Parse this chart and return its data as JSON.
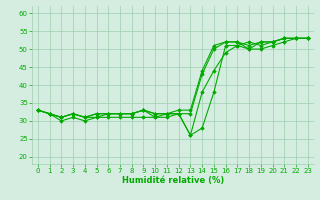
{
  "xlabel": "Humidité relative (%)",
  "xlim": [
    -0.5,
    23.5
  ],
  "ylim": [
    18,
    62
  ],
  "yticks": [
    20,
    25,
    30,
    35,
    40,
    45,
    50,
    55,
    60
  ],
  "xticks": [
    0,
    1,
    2,
    3,
    4,
    5,
    6,
    7,
    8,
    9,
    10,
    11,
    12,
    13,
    14,
    15,
    16,
    17,
    18,
    19,
    20,
    21,
    22,
    23
  ],
  "background_color": "#d5ede0",
  "grid_color": "#9ecfb0",
  "line_color": "#00aa00",
  "lines": [
    [
      33,
      32,
      31,
      32,
      31,
      31,
      32,
      32,
      32,
      33,
      31,
      32,
      32,
      26,
      28,
      38,
      51,
      51,
      52,
      51,
      52,
      53,
      53,
      53
    ],
    [
      33,
      32,
      30,
      31,
      30,
      31,
      31,
      31,
      31,
      31,
      31,
      31,
      32,
      26,
      38,
      44,
      49,
      51,
      50,
      50,
      51,
      52,
      53,
      53
    ],
    [
      33,
      32,
      31,
      32,
      31,
      32,
      32,
      32,
      32,
      33,
      32,
      32,
      32,
      32,
      43,
      50,
      52,
      52,
      50,
      52,
      52,
      53,
      53,
      53
    ],
    [
      33,
      32,
      31,
      32,
      31,
      32,
      32,
      32,
      32,
      33,
      32,
      32,
      33,
      33,
      44,
      51,
      52,
      52,
      51,
      52,
      52,
      53,
      53,
      53
    ]
  ],
  "marker": "D",
  "markersize": 1.8,
  "linewidth": 0.8,
  "tick_fontsize": 5.0,
  "xlabel_fontsize": 6.0,
  "figsize": [
    3.2,
    2.0
  ],
  "dpi": 100
}
